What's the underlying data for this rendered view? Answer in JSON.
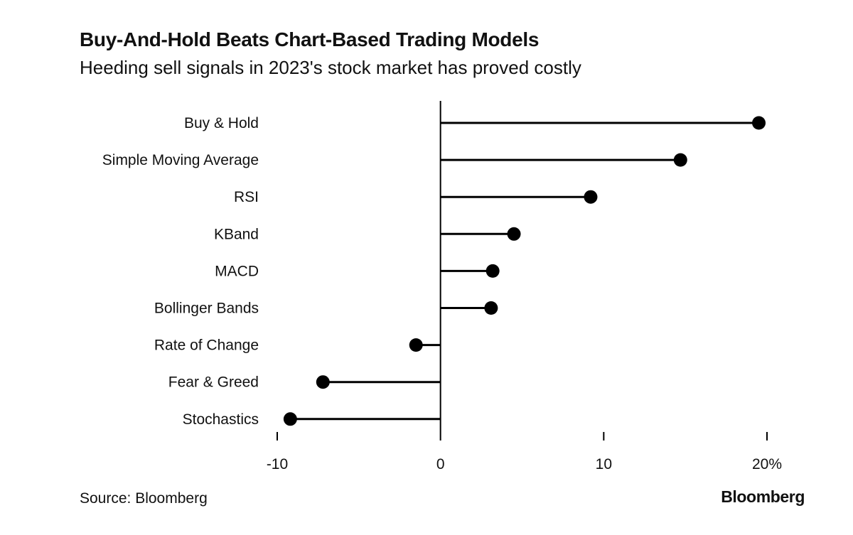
{
  "header": {
    "title": "Buy-And-Hold Beats Chart-Based Trading Models",
    "subtitle": "Heeding sell signals in 2023's stock market has proved costly"
  },
  "footer": {
    "source": "Source: Bloomberg",
    "brand": "Bloomberg"
  },
  "colors": {
    "mark": "#000000",
    "axis": "#000000",
    "text": "#111111"
  },
  "chart_data": {
    "type": "lollipop",
    "title": "Buy-And-Hold Beats Chart-Based Trading Models",
    "subtitle": "Heeding sell signals in 2023's stock market has proved costly",
    "categories": [
      "Buy & Hold",
      "Simple Moving Average",
      "RSI",
      "KBand",
      "MACD",
      "Bollinger Bands",
      "Rate of Change",
      "Fear & Greed",
      "Stochastics"
    ],
    "values": [
      19.5,
      14.7,
      9.2,
      4.5,
      3.2,
      3.1,
      -1.5,
      -7.2,
      -9.2
    ],
    "unit": "%",
    "xlim": [
      -10,
      20
    ],
    "x_ticks": [
      -10,
      0,
      10,
      20
    ],
    "x_tick_labels": [
      "-10",
      "0",
      "10",
      "20%"
    ],
    "grid": false,
    "legend": "none"
  }
}
